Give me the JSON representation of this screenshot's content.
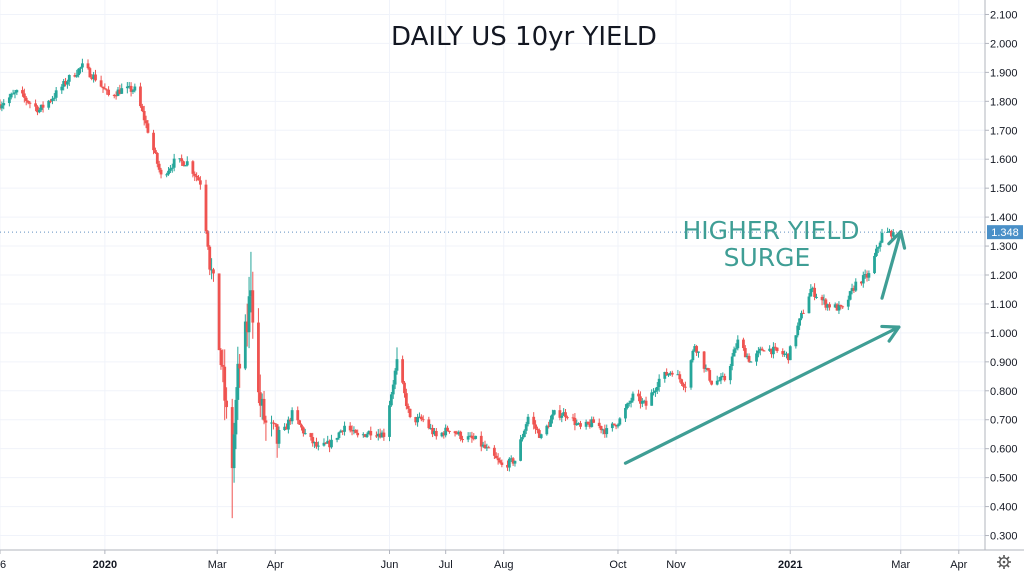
{
  "chart_data": {
    "type": "candlestick",
    "title": "DAILY US 10yr YIELD",
    "ylim": [
      0.25,
      2.15
    ],
    "y_ticks": [
      "2.100",
      "2.000",
      "1.900",
      "1.800",
      "1.700",
      "1.600",
      "1.500",
      "1.400",
      "1.300",
      "1.200",
      "1.100",
      "1.000",
      "0.900",
      "0.800",
      "0.700",
      "0.600",
      "0.500",
      "0.400",
      "0.300"
    ],
    "x_ticks": [
      {
        "label": "6",
        "date": "2019-11-06"
      },
      {
        "label": "2020",
        "date": "2020-01-01",
        "bold": true
      },
      {
        "label": "Mar",
        "date": "2020-03-01"
      },
      {
        "label": "Apr",
        "date": "2020-04-01"
      },
      {
        "label": "Jun",
        "date": "2020-06-01"
      },
      {
        "label": "Jul",
        "date": "2020-07-01"
      },
      {
        "label": "Aug",
        "date": "2020-08-01"
      },
      {
        "label": "Oct",
        "date": "2020-10-01"
      },
      {
        "label": "Nov",
        "date": "2020-11-01"
      },
      {
        "label": "2021",
        "date": "2021-01-01",
        "bold": true
      },
      {
        "label": "Mar",
        "date": "2021-03-01"
      },
      {
        "label": "Apr",
        "date": "2021-04-01"
      }
    ],
    "x_range": [
      "2019-11-06",
      "2021-04-15"
    ],
    "last_price": "1.348",
    "last_price_value": 1.348,
    "up_color": "#26a69a",
    "down_color": "#ef5350",
    "annotation": {
      "text_line1": "HIGHER YIELD",
      "text_line2": "SURGE",
      "color": "#3f9e95"
    },
    "trend_arrows": [
      {
        "from": [
          "2020-10-05",
          0.55
        ],
        "to": [
          "2021-02-28",
          1.02
        ]
      },
      {
        "from": [
          "2021-02-19",
          1.12
        ],
        "to": [
          "2021-03-01",
          1.35
        ]
      }
    ],
    "close_path": [
      [
        "2019-11-06",
        1.79
      ],
      [
        "2019-11-15",
        1.83
      ],
      [
        "2019-11-27",
        1.77
      ],
      [
        "2019-12-05",
        1.82
      ],
      [
        "2019-12-13",
        1.88
      ],
      [
        "2019-12-20",
        1.92
      ],
      [
        "2019-12-27",
        1.88
      ],
      [
        "2020-01-03",
        1.82
      ],
      [
        "2020-01-10",
        1.84
      ],
      [
        "2020-01-17",
        1.84
      ],
      [
        "2020-01-24",
        1.7
      ],
      [
        "2020-01-31",
        1.54
      ],
      [
        "2020-02-07",
        1.59
      ],
      [
        "2020-02-14",
        1.59
      ],
      [
        "2020-02-21",
        1.52
      ],
      [
        "2020-02-28",
        1.15
      ],
      [
        "2020-03-06",
        0.71
      ],
      [
        "2020-03-09",
        0.55
      ],
      [
        "2020-03-12",
        0.85
      ],
      [
        "2020-03-17",
        1.02
      ],
      [
        "2020-03-19",
        1.18
      ],
      [
        "2020-03-23",
        0.78
      ],
      [
        "2020-03-27",
        0.68
      ],
      [
        "2020-04-03",
        0.62
      ],
      [
        "2020-04-10",
        0.72
      ],
      [
        "2020-04-17",
        0.65
      ],
      [
        "2020-04-24",
        0.6
      ],
      [
        "2020-05-01",
        0.62
      ],
      [
        "2020-05-08",
        0.68
      ],
      [
        "2020-05-15",
        0.64
      ],
      [
        "2020-05-22",
        0.66
      ],
      [
        "2020-05-29",
        0.65
      ],
      [
        "2020-06-05",
        0.9
      ],
      [
        "2020-06-12",
        0.7
      ],
      [
        "2020-06-19",
        0.7
      ],
      [
        "2020-06-26",
        0.64
      ],
      [
        "2020-07-03",
        0.67
      ],
      [
        "2020-07-10",
        0.64
      ],
      [
        "2020-07-17",
        0.63
      ],
      [
        "2020-07-24",
        0.59
      ],
      [
        "2020-07-31",
        0.54
      ],
      [
        "2020-08-07",
        0.56
      ],
      [
        "2020-08-14",
        0.71
      ],
      [
        "2020-08-21",
        0.64
      ],
      [
        "2020-08-28",
        0.72
      ],
      [
        "2020-09-04",
        0.72
      ],
      [
        "2020-09-11",
        0.67
      ],
      [
        "2020-09-18",
        0.69
      ],
      [
        "2020-09-25",
        0.66
      ],
      [
        "2020-10-02",
        0.7
      ],
      [
        "2020-10-09",
        0.78
      ],
      [
        "2020-10-16",
        0.75
      ],
      [
        "2020-10-23",
        0.84
      ],
      [
        "2020-10-30",
        0.87
      ],
      [
        "2020-11-06",
        0.82
      ],
      [
        "2020-11-11",
        0.96
      ],
      [
        "2020-11-20",
        0.83
      ],
      [
        "2020-11-27",
        0.84
      ],
      [
        "2020-12-04",
        0.97
      ],
      [
        "2020-12-11",
        0.9
      ],
      [
        "2020-12-18",
        0.95
      ],
      [
        "2020-12-31",
        0.92
      ],
      [
        "2021-01-06",
        1.04
      ],
      [
        "2021-01-12",
        1.15
      ],
      [
        "2021-01-20",
        1.1
      ],
      [
        "2021-01-29",
        1.08
      ],
      [
        "2021-02-05",
        1.17
      ],
      [
        "2021-02-12",
        1.2
      ],
      [
        "2021-02-19",
        1.34
      ],
      [
        "2021-02-25",
        1.348
      ]
    ]
  }
}
